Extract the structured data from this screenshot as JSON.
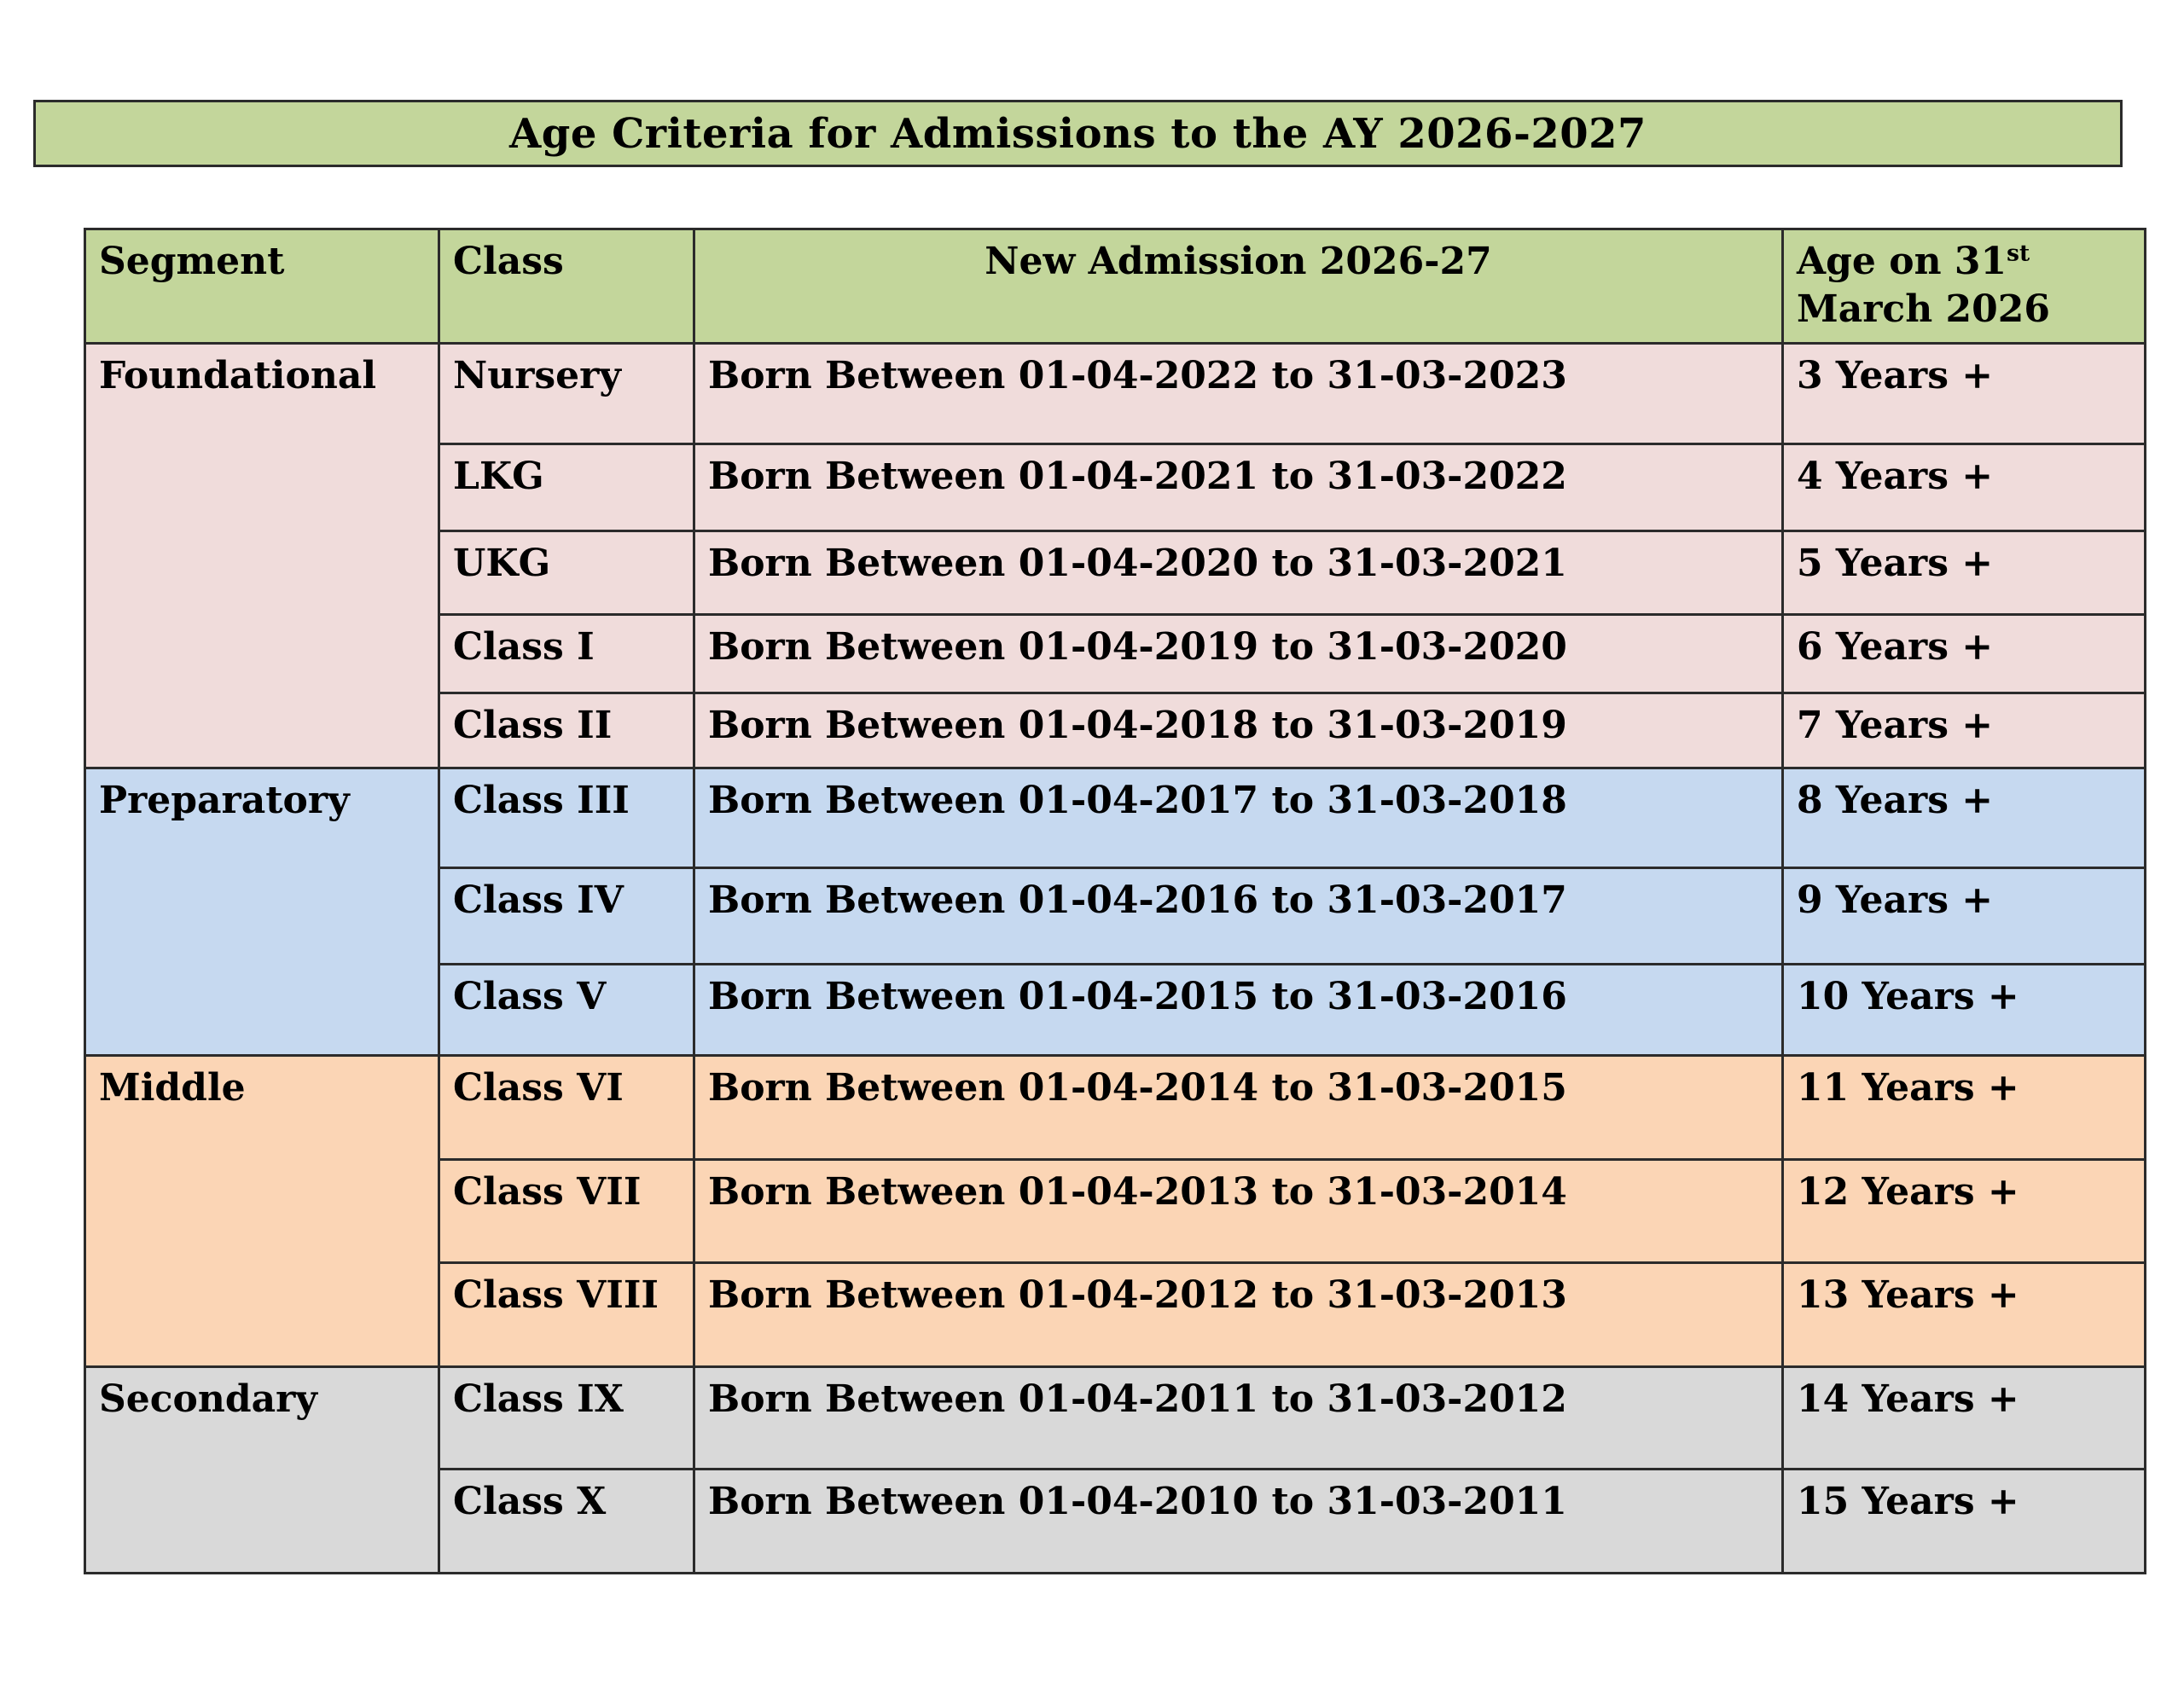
{
  "banner": {
    "title": "Age Criteria for Admissions to the AY 2026-2027",
    "bg_color": "#c3d69b"
  },
  "table": {
    "header_bg_color": "#c3d69b",
    "headers": {
      "segment": "Segment",
      "class": "Class",
      "admission": "New Admission 2026-27"
    },
    "age_header": {
      "line1": "Age on 31",
      "sup": "st",
      "line2": "March 2026"
    },
    "segments": [
      {
        "name": "Foundational",
        "color": "#f0dcdb",
        "rows": [
          {
            "class": "Nursery",
            "admission": "Born Between 01-04-2022 to 31-03-2023",
            "age": "3 Years +"
          },
          {
            "class": "LKG",
            "admission": "Born Between 01-04-2021 to 31-03-2022",
            "age": "4 Years +"
          },
          {
            "class": "UKG",
            "admission": "Born Between 01-04-2020 to 31-03-2021",
            "age": "5 Years +"
          },
          {
            "class": "Class I",
            "admission": "Born Between 01-04-2019 to 31-03-2020",
            "age": "6 Years +"
          },
          {
            "class": "Class II",
            "admission": "Born Between 01-04-2018 to 31-03-2019",
            "age": "7 Years +"
          }
        ]
      },
      {
        "name": "Preparatory",
        "color": "#c6d9f0",
        "rows": [
          {
            "class": "Class III",
            "admission": "Born Between 01-04-2017 to 31-03-2018",
            "age": "8 Years +"
          },
          {
            "class": "Class IV",
            "admission": "Born Between 01-04-2016 to 31-03-2017",
            "age": "9 Years +"
          },
          {
            "class": "Class V",
            "admission": "Born Between 01-04-2015 to 31-03-2016",
            "age": "10 Years +"
          }
        ]
      },
      {
        "name": "Middle",
        "color": "#fbd5b5",
        "rows": [
          {
            "class": "Class VI",
            "admission": "Born Between 01-04-2014 to 31-03-2015",
            "age": "11 Years +"
          },
          {
            "class": "Class VII",
            "admission": "Born Between 01-04-2013 to 31-03-2014",
            "age": "12 Years +"
          },
          {
            "class": "Class VIII",
            "admission": "Born Between 01-04-2012 to 31-03-2013",
            "age": "13 Years +"
          }
        ]
      },
      {
        "name": "Secondary",
        "color": "#d9d9d9",
        "rows": [
          {
            "class": "Class IX",
            "admission": "Born Between 01-04-2011 to 31-03-2012",
            "age": "14 Years +"
          },
          {
            "class": "Class X",
            "admission": "Born Between 01-04-2010 to 31-03-2011",
            "age": "15 Years +"
          }
        ]
      }
    ]
  }
}
